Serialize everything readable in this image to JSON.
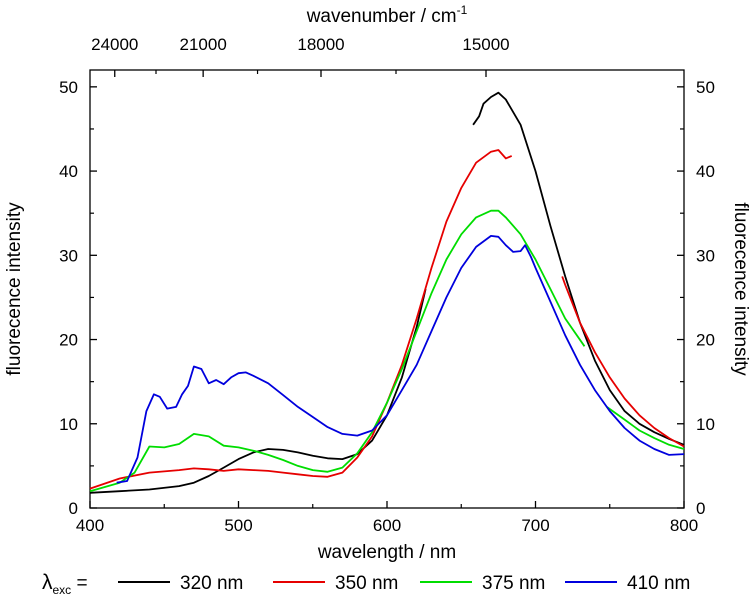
{
  "chart_data": {
    "type": "line",
    "xlabel": "wavelength /  nm",
    "ylabel": "fluorecence intensity",
    "ylabel_right": "fluorecence intensity",
    "top_xlabel": "wavenumber / cm",
    "top_xlabel_sup": "-1",
    "xlim": [
      400,
      800
    ],
    "ylim": [
      0,
      52
    ],
    "xticks": [
      400,
      500,
      600,
      700,
      800
    ],
    "yticks": [
      0,
      10,
      20,
      30,
      40,
      50
    ],
    "top_ticks": [
      {
        "label": "24000",
        "wavenumber": 24000
      },
      {
        "label": "21000",
        "wavenumber": 21000
      },
      {
        "label": "18000",
        "wavenumber": 18000
      },
      {
        "label": "15000",
        "wavenumber": 15000
      }
    ],
    "top_minor_wavenumbers": [
      22500,
      19500,
      16500
    ],
    "legend": {
      "prefix_main": "λ",
      "prefix_sub": "exc",
      "prefix_eq": " ="
    },
    "series": [
      {
        "name": "320 nm",
        "color": "#000000",
        "segments": [
          [
            [
              400,
              1.8
            ],
            [
              420,
              2.0
            ],
            [
              440,
              2.2
            ],
            [
              460,
              2.6
            ],
            [
              470,
              3.0
            ],
            [
              480,
              3.8
            ],
            [
              490,
              4.8
            ],
            [
              500,
              5.8
            ],
            [
              510,
              6.6
            ],
            [
              520,
              7.0
            ],
            [
              530,
              6.9
            ],
            [
              540,
              6.6
            ],
            [
              550,
              6.2
            ],
            [
              560,
              5.9
            ],
            [
              570,
              5.8
            ],
            [
              580,
              6.4
            ],
            [
              590,
              8.0
            ],
            [
              600,
              11.0
            ],
            [
              610,
              15.5
            ],
            [
              620,
              21.5
            ],
            [
              626,
              26.0
            ]
          ],
          [
            [
              658,
              45.5
            ],
            [
              662,
              46.5
            ],
            [
              665,
              48.0
            ],
            [
              670,
              48.8
            ],
            [
              675,
              49.3
            ],
            [
              680,
              48.5
            ],
            [
              690,
              45.5
            ],
            [
              700,
              40.0
            ],
            [
              710,
              33.5
            ],
            [
              720,
              27.5
            ],
            [
              730,
              22.0
            ],
            [
              740,
              17.5
            ],
            [
              750,
              14.0
            ],
            [
              760,
              11.5
            ],
            [
              770,
              10.0
            ],
            [
              780,
              9.0
            ],
            [
              790,
              8.2
            ],
            [
              800,
              7.5
            ]
          ]
        ]
      },
      {
        "name": "350 nm",
        "color": "#e60000",
        "segments": [
          [
            [
              400,
              2.3
            ],
            [
              420,
              3.5
            ],
            [
              440,
              4.2
            ],
            [
              460,
              4.5
            ],
            [
              470,
              4.7
            ],
            [
              480,
              4.6
            ],
            [
              490,
              4.4
            ],
            [
              500,
              4.6
            ],
            [
              510,
              4.5
            ],
            [
              520,
              4.4
            ],
            [
              530,
              4.2
            ],
            [
              540,
              4.0
            ],
            [
              550,
              3.8
            ],
            [
              560,
              3.7
            ],
            [
              570,
              4.2
            ],
            [
              580,
              6.0
            ],
            [
              590,
              8.5
            ],
            [
              600,
              12.5
            ],
            [
              610,
              17.0
            ],
            [
              620,
              22.5
            ],
            [
              630,
              28.5
            ],
            [
              640,
              34.0
            ],
            [
              650,
              38.0
            ],
            [
              660,
              41.0
            ],
            [
              670,
              42.3
            ],
            [
              675,
              42.5
            ],
            [
              680,
              41.5
            ],
            [
              684,
              41.8
            ]
          ],
          [
            [
              718,
              27.5
            ],
            [
              720,
              26.5
            ],
            [
              730,
              22.0
            ],
            [
              740,
              18.5
            ],
            [
              750,
              15.5
            ],
            [
              760,
              13.0
            ],
            [
              770,
              11.0
            ],
            [
              780,
              9.5
            ],
            [
              790,
              8.3
            ],
            [
              800,
              7.3
            ]
          ]
        ]
      },
      {
        "name": "375 nm",
        "color": "#00dd00",
        "segments": [
          [
            [
              400,
              2.0
            ],
            [
              420,
              3.0
            ],
            [
              430,
              4.2
            ],
            [
              440,
              7.3
            ],
            [
              450,
              7.2
            ],
            [
              460,
              7.6
            ],
            [
              470,
              8.8
            ],
            [
              480,
              8.5
            ],
            [
              490,
              7.4
            ],
            [
              500,
              7.2
            ],
            [
              510,
              6.8
            ],
            [
              520,
              6.3
            ],
            [
              530,
              5.7
            ],
            [
              540,
              5.0
            ],
            [
              550,
              4.5
            ],
            [
              560,
              4.3
            ],
            [
              570,
              4.8
            ],
            [
              580,
              6.5
            ],
            [
              590,
              9.0
            ],
            [
              600,
              12.5
            ],
            [
              610,
              16.5
            ],
            [
              620,
              21.0
            ],
            [
              630,
              25.5
            ],
            [
              640,
              29.5
            ],
            [
              650,
              32.5
            ],
            [
              660,
              34.5
            ],
            [
              670,
              35.3
            ],
            [
              675,
              35.3
            ],
            [
              680,
              34.5
            ],
            [
              690,
              32.5
            ],
            [
              700,
              29.5
            ],
            [
              710,
              26.0
            ],
            [
              720,
              22.5
            ],
            [
              733,
              19.2
            ]
          ],
          [
            [
              748,
              12.0
            ],
            [
              760,
              10.5
            ],
            [
              770,
              9.2
            ],
            [
              780,
              8.3
            ],
            [
              790,
              7.5
            ],
            [
              800,
              7.0
            ]
          ]
        ]
      },
      {
        "name": "410 nm",
        "color": "#0000dd",
        "segments": [
          [
            [
              418,
              3.0
            ],
            [
              425,
              3.2
            ],
            [
              432,
              6.0
            ],
            [
              438,
              11.5
            ],
            [
              443,
              13.5
            ],
            [
              447,
              13.2
            ],
            [
              452,
              11.8
            ],
            [
              458,
              12.0
            ],
            [
              462,
              13.5
            ],
            [
              466,
              14.5
            ],
            [
              470,
              16.8
            ],
            [
              475,
              16.5
            ],
            [
              480,
              14.8
            ],
            [
              485,
              15.2
            ],
            [
              490,
              14.7
            ],
            [
              495,
              15.5
            ],
            [
              500,
              16.0
            ],
            [
              505,
              16.1
            ],
            [
              510,
              15.7
            ],
            [
              520,
              14.8
            ],
            [
              530,
              13.4
            ],
            [
              540,
              12.0
            ],
            [
              550,
              10.8
            ],
            [
              560,
              9.6
            ],
            [
              570,
              8.8
            ],
            [
              580,
              8.6
            ],
            [
              590,
              9.2
            ],
            [
              600,
              11.0
            ],
            [
              610,
              14.0
            ],
            [
              620,
              17.0
            ],
            [
              630,
              21.0
            ],
            [
              640,
              25.0
            ],
            [
              650,
              28.5
            ],
            [
              660,
              31.0
            ],
            [
              670,
              32.3
            ],
            [
              675,
              32.2
            ],
            [
              680,
              31.2
            ],
            [
              685,
              30.4
            ],
            [
              690,
              30.5
            ],
            [
              693,
              31.2
            ],
            [
              697,
              29.8
            ],
            [
              700,
              28.5
            ],
            [
              710,
              24.5
            ],
            [
              720,
              20.5
            ],
            [
              730,
              17.0
            ],
            [
              740,
              14.0
            ],
            [
              750,
              11.5
            ],
            [
              760,
              9.5
            ],
            [
              770,
              8.0
            ],
            [
              780,
              7.0
            ],
            [
              790,
              6.3
            ],
            [
              800,
              6.4
            ]
          ]
        ]
      }
    ]
  }
}
